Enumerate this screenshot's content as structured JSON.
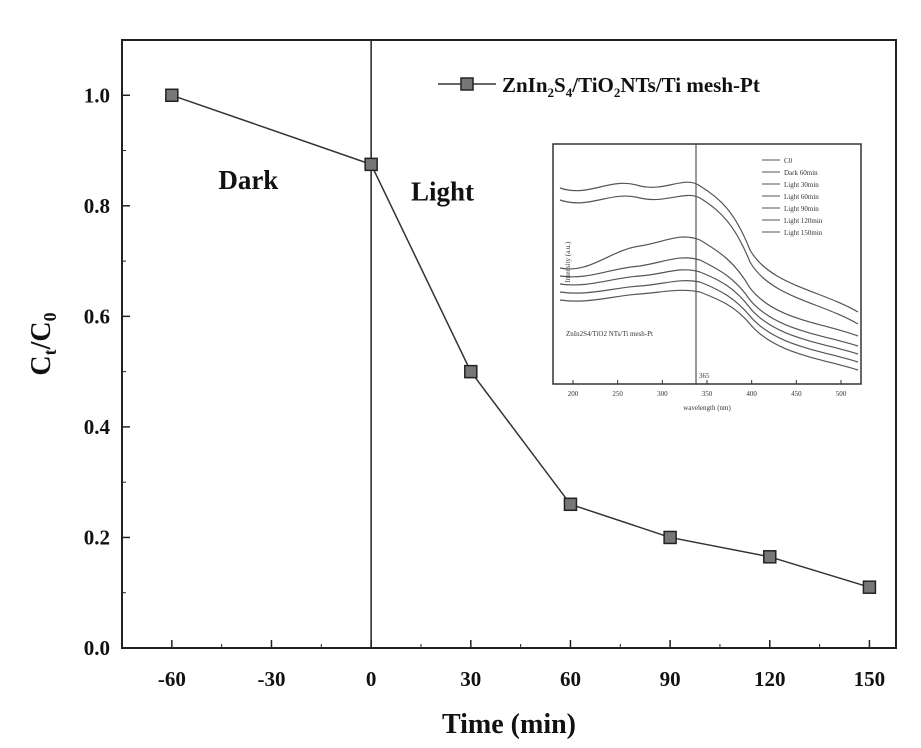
{
  "chart_data": [
    {
      "type": "line",
      "title": "",
      "xlabel": "Time (min)",
      "ylabel_main": "C",
      "ylabel_sub": "t",
      "ylabel_sep": "/C",
      "ylabel_sub2": "0",
      "x": [
        -60,
        0,
        30,
        60,
        90,
        120,
        150
      ],
      "xlim": [
        -75,
        158
      ],
      "ylim": [
        0.0,
        1.1
      ],
      "xticks": [
        -60,
        -30,
        0,
        30,
        60,
        90,
        120,
        150
      ],
      "xtick_labels": [
        "-60",
        "-30",
        "0",
        "30",
        "60",
        "90",
        "120",
        "150"
      ],
      "yticks": [
        0.0,
        0.2,
        0.4,
        0.6,
        0.8,
        1.0
      ],
      "ytick_labels": [
        "0.0",
        "0.2",
        "0.4",
        "0.6",
        "0.8",
        "1.0"
      ],
      "series": [
        {
          "legend_parts": [
            "ZnIn",
            "2",
            "S",
            "4",
            "/TiO",
            "2",
            "NTs/Ti mesh-Pt"
          ],
          "values": [
            1.0,
            0.875,
            0.5,
            0.26,
            0.2,
            0.165,
            0.11
          ],
          "marker": "square",
          "color": "#222222"
        }
      ],
      "divider_x": 0,
      "regions": [
        {
          "label": "Dark",
          "x": -46,
          "y": 0.83
        },
        {
          "label": "Light",
          "x": 12,
          "y": 0.81
        }
      ],
      "legend_position": "top-right",
      "grid": false
    },
    {
      "type": "line",
      "title": "",
      "xlabel": "wavelength (nm)",
      "ylabel": "Intensity (a.u.)",
      "xtick_labels": [
        "200",
        "250",
        "300",
        "350",
        "400",
        "450",
        "500"
      ],
      "divider_label": "365",
      "annotation": "ZnIn2S4/TiO2 NTs/Ti mesh-Pt",
      "legend": [
        "C0",
        "Dark 60min",
        "Light 30min",
        "Light 60min",
        "Light 90min",
        "Light 120min",
        "Light 150min"
      ],
      "legend_position": "top-right"
    }
  ]
}
